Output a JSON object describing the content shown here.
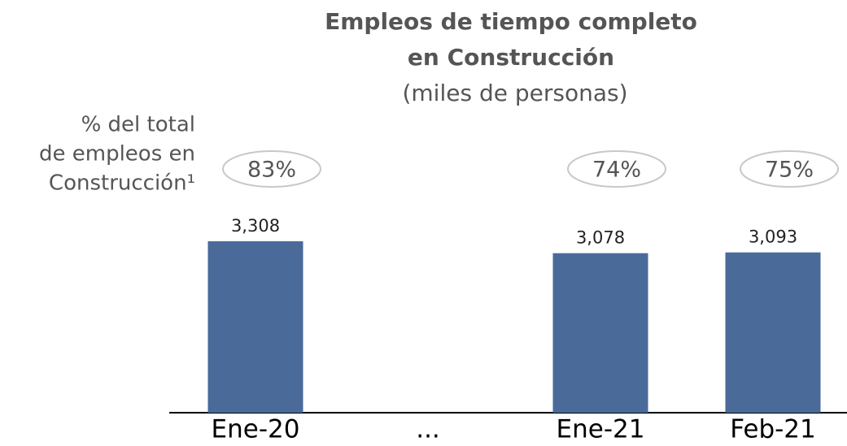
{
  "chart_data": {
    "type": "bar",
    "title": [
      "Empleos de tiempo completo",
      "en Construcción"
    ],
    "subtitle": "(miles de personas)",
    "annotation": [
      "% del total",
      "de empleos en",
      "Construcción¹"
    ],
    "categories": [
      "Ene-20",
      "...",
      "Ene-21",
      "Feb-21"
    ],
    "values": [
      3308,
      null,
      3078,
      3093
    ],
    "value_labels": [
      "3,308",
      null,
      "3,078",
      "3,093"
    ],
    "percent_values": [
      83,
      null,
      74,
      75
    ],
    "percent_labels": [
      "83%",
      null,
      "74%",
      "75%"
    ],
    "color": "#4a6a99"
  }
}
